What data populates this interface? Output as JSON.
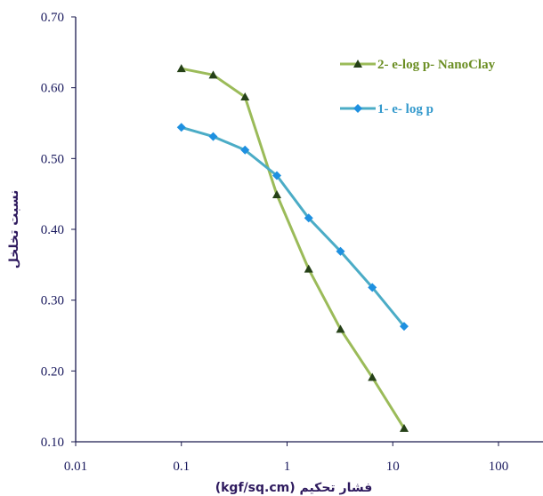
{
  "chart_data": {
    "type": "line",
    "title": "",
    "xlabel": "فشار تحکیم (kgf/sq.cm)",
    "ylabel": "نسبت تخلخل",
    "x_scale": "log",
    "xlim": [
      0.01,
      100
    ],
    "ylim": [
      0.1,
      0.7
    ],
    "x_tick_labels": [
      "0.01",
      "0.1",
      "1",
      "10",
      "100"
    ],
    "x_ticks": [
      0.01,
      0.1,
      1,
      10,
      100
    ],
    "y_tick_labels": [
      "0.10",
      "0.20",
      "0.30",
      "0.40",
      "0.50",
      "0.60",
      "0.70"
    ],
    "y_ticks": [
      0.1,
      0.2,
      0.3,
      0.4,
      0.5,
      0.6,
      0.7
    ],
    "grid": false,
    "legend_position": "top-right",
    "series": [
      {
        "name": "2- e-log p- NanoClay",
        "color": "#9bbb59",
        "marker_color": "#254117",
        "marker": "triangle",
        "x": [
          0.1,
          0.2,
          0.4,
          0.8,
          1.6,
          3.2,
          6.4,
          12.8
        ],
        "y": [
          0.627,
          0.618,
          0.587,
          0.449,
          0.344,
          0.259,
          0.191,
          0.119
        ]
      },
      {
        "name": "1- e- log p",
        "color": "#4bacc6",
        "marker_color": "#1e90e0",
        "marker": "diamond",
        "x": [
          0.1,
          0.2,
          0.4,
          0.8,
          1.6,
          3.2,
          6.4,
          12.8
        ],
        "y": [
          0.544,
          0.531,
          0.512,
          0.476,
          0.416,
          0.369,
          0.318,
          0.263
        ]
      }
    ]
  }
}
